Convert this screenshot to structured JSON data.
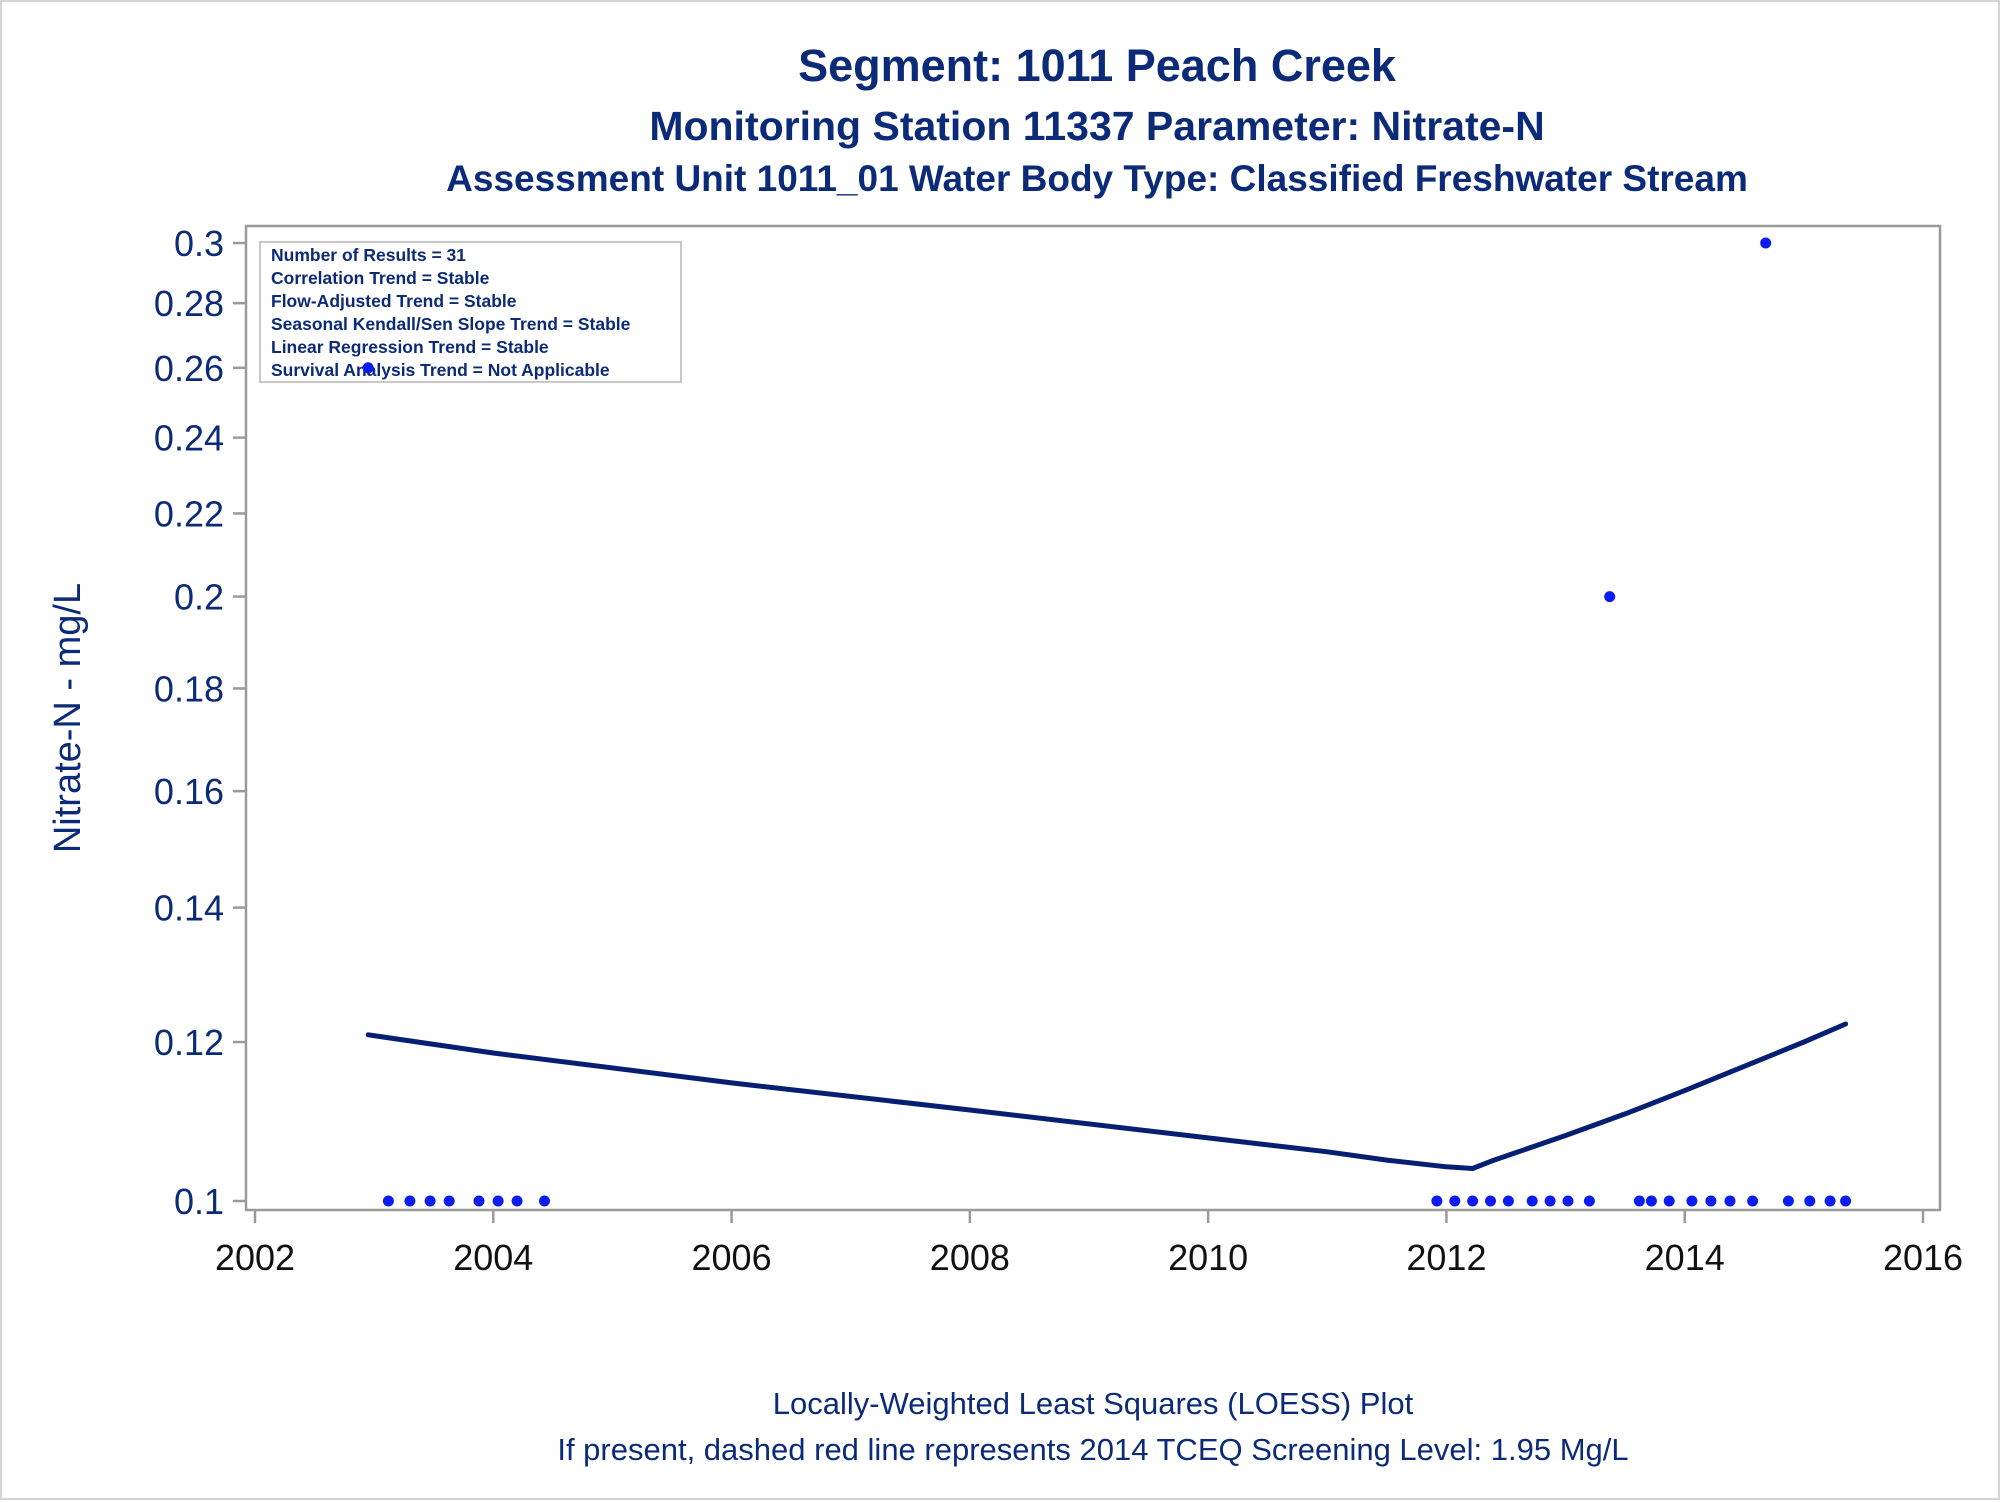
{
  "colors": {
    "text_navy": "#0b2a78",
    "marker_blue": "#0a1cf2",
    "loess_line": "#061f72",
    "axis_gray": "#9a9a9a",
    "frame_gray": "#d4d4d4"
  },
  "chart_data": {
    "type": "scatter",
    "title": "Segment: 1011  Peach Creek",
    "subtitle": "Monitoring Station 11337 Parameter: Nitrate-N",
    "subtitle2": "Assessment Unit 1011_01   Water Body Type: Classified Freshwater Stream",
    "xlabel": "",
    "ylabel": "Nitrate-N - mg/L",
    "x_ticks": [
      "2002",
      "2004",
      "2006",
      "2008",
      "2010",
      "2012",
      "2014",
      "2016"
    ],
    "y_ticks": [
      "0.1",
      "0.12",
      "0.14",
      "0.16",
      "0.18",
      "0.2",
      "0.22",
      "0.24",
      "0.26",
      "0.28",
      "0.3"
    ],
    "xlim": [
      2002,
      2016
    ],
    "ylim": [
      0.1,
      0.3
    ],
    "y_scale": "log",
    "grid": false,
    "stats_box": {
      "position": "top-left",
      "lines": [
        "Number of Results = 31",
        "Correlation Trend = Stable",
        "Flow-Adjusted Trend = Stable",
        "Seasonal Kendall/Sen Slope Trend = Stable",
        "Linear Regression Trend = Stable",
        "Survival Analysis Trend = Not Applicable"
      ]
    },
    "footnotes": [
      "Locally-Weighted Least Squares (LOESS) Plot",
      "If present, dashed red line represents 2014 TCEQ Screening Level: 1.95 Mg/L"
    ],
    "series": [
      {
        "kind": "points",
        "points": [
          {
            "x": 2002.95,
            "y": 0.26
          },
          {
            "x": 2003.12,
            "y": 0.1
          },
          {
            "x": 2003.3,
            "y": 0.1
          },
          {
            "x": 2003.47,
            "y": 0.1
          },
          {
            "x": 2003.63,
            "y": 0.1
          },
          {
            "x": 2003.88,
            "y": 0.1
          },
          {
            "x": 2004.04,
            "y": 0.1
          },
          {
            "x": 2004.2,
            "y": 0.1
          },
          {
            "x": 2004.43,
            "y": 0.1
          },
          {
            "x": 2011.92,
            "y": 0.1
          },
          {
            "x": 2012.07,
            "y": 0.1
          },
          {
            "x": 2012.22,
            "y": 0.1
          },
          {
            "x": 2012.37,
            "y": 0.1
          },
          {
            "x": 2012.52,
            "y": 0.1
          },
          {
            "x": 2012.72,
            "y": 0.1
          },
          {
            "x": 2012.87,
            "y": 0.1
          },
          {
            "x": 2013.02,
            "y": 0.1
          },
          {
            "x": 2013.2,
            "y": 0.1
          },
          {
            "x": 2013.37,
            "y": 0.2
          },
          {
            "x": 2013.62,
            "y": 0.1
          },
          {
            "x": 2013.72,
            "y": 0.1
          },
          {
            "x": 2013.87,
            "y": 0.1
          },
          {
            "x": 2014.06,
            "y": 0.1
          },
          {
            "x": 2014.22,
            "y": 0.1
          },
          {
            "x": 2014.38,
            "y": 0.1
          },
          {
            "x": 2014.57,
            "y": 0.1
          },
          {
            "x": 2014.68,
            "y": 0.3
          },
          {
            "x": 2014.87,
            "y": 0.1
          },
          {
            "x": 2015.05,
            "y": 0.1
          },
          {
            "x": 2015.22,
            "y": 0.1
          },
          {
            "x": 2015.35,
            "y": 0.1
          }
        ]
      },
      {
        "kind": "loess",
        "points": [
          {
            "x": 2002.95,
            "y": 0.121
          },
          {
            "x": 2004.0,
            "y": 0.1185
          },
          {
            "x": 2006.0,
            "y": 0.1145
          },
          {
            "x": 2008.0,
            "y": 0.111
          },
          {
            "x": 2010.0,
            "y": 0.1075
          },
          {
            "x": 2011.0,
            "y": 0.1058
          },
          {
            "x": 2011.5,
            "y": 0.1048
          },
          {
            "x": 2012.0,
            "y": 0.104
          },
          {
            "x": 2012.22,
            "y": 0.1038
          },
          {
            "x": 2012.4,
            "y": 0.1048
          },
          {
            "x": 2013.0,
            "y": 0.1078
          },
          {
            "x": 2013.5,
            "y": 0.1105
          },
          {
            "x": 2014.0,
            "y": 0.1135
          },
          {
            "x": 2014.5,
            "y": 0.1167
          },
          {
            "x": 2015.0,
            "y": 0.12
          },
          {
            "x": 2015.35,
            "y": 0.1225
          }
        ]
      }
    ]
  }
}
